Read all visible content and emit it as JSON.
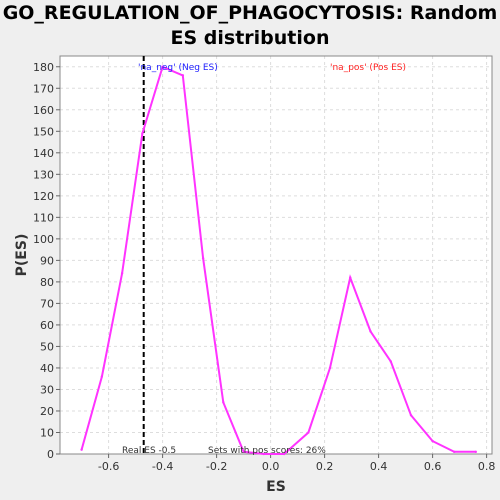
{
  "chart_data": {
    "type": "line",
    "title_line1": "GO_REGULATION_OF_PHAGOCYTOSIS: Random",
    "title_line2": "ES distribution",
    "xlabel": "ES",
    "ylabel": "P(ES)",
    "xlim": [
      -0.78,
      0.82
    ],
    "ylim": [
      0,
      185
    ],
    "x_ticks": [
      -0.6,
      -0.4,
      -0.2,
      0.0,
      0.2,
      0.4,
      0.6,
      0.8
    ],
    "y_ticks": [
      0,
      10,
      20,
      30,
      40,
      50,
      60,
      70,
      80,
      90,
      100,
      110,
      120,
      130,
      140,
      150,
      160,
      170,
      180
    ],
    "grid": true,
    "series": [
      {
        "color": "#ff33ff",
        "x": [
          -0.7,
          -0.625,
          -0.55,
          -0.475,
          -0.4,
          -0.325,
          -0.25,
          -0.175,
          -0.1,
          -0.025,
          0.05,
          0.14,
          0.22,
          0.295,
          0.37,
          0.445,
          0.52,
          0.6,
          0.68,
          0.76
        ],
        "y": [
          2,
          36,
          84,
          149,
          180,
          176,
          91,
          24,
          1,
          0,
          0,
          10,
          40,
          82,
          57,
          43,
          18,
          6,
          1,
          1
        ]
      }
    ],
    "real_es": -0.47,
    "annotations": {
      "neg_label": "'na_neg' (Neg ES)",
      "neg_color": "#2222ff",
      "pos_label": "'na_pos' (Pos ES)",
      "pos_color": "#ff2222",
      "real_es_label": "Real ES -0.5",
      "pos_scores_label": "Sets with pos scores: 26%"
    }
  }
}
